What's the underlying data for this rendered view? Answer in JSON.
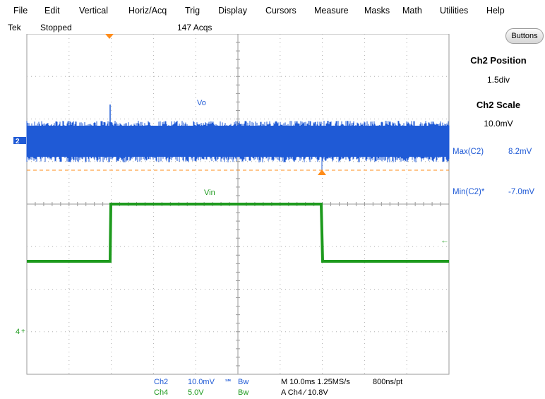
{
  "menu": [
    "File",
    "Edit",
    "Vertical",
    "Horiz/Acq",
    "Trig",
    "Display",
    "Cursors",
    "Measure",
    "Masks",
    "Math",
    "Utilities",
    "Help"
  ],
  "status": {
    "brand": "Tek",
    "run_state": "Stopped",
    "acqs": "147 Acqs"
  },
  "side_panel": {
    "buttons_label": "Buttons",
    "ch2_position_title": "Ch2 Position",
    "ch2_position_value": "1.5div",
    "ch2_scale_title": "Ch2 Scale",
    "ch2_scale_value": "10.0mV"
  },
  "measurements": [
    {
      "label": "Max(C2)",
      "value": "8.2mV"
    },
    {
      "label": "Min(C2)*",
      "value": "-7.0mV"
    }
  ],
  "traces": {
    "ch2": {
      "label": "Vo",
      "marker": "2",
      "color": "#1f5ad6"
    },
    "ch4": {
      "label": "Vin",
      "marker": "4",
      "color": "#1d9a1d"
    },
    "trigger_color": "#ff8c1a"
  },
  "bottom": {
    "ch2_name": "Ch2",
    "ch2_scale": "10.0mV",
    "ch2_flag": "℠",
    "ch2_bw": "Bw",
    "ch4_name": "Ch4",
    "ch4_scale": "5.0V",
    "ch4_bw": "Bw",
    "timebase": "M 10.0ms 1.25MS/s",
    "record": "800ns/pt",
    "trigger": "A  Ch4  ∕  10.8V"
  }
}
